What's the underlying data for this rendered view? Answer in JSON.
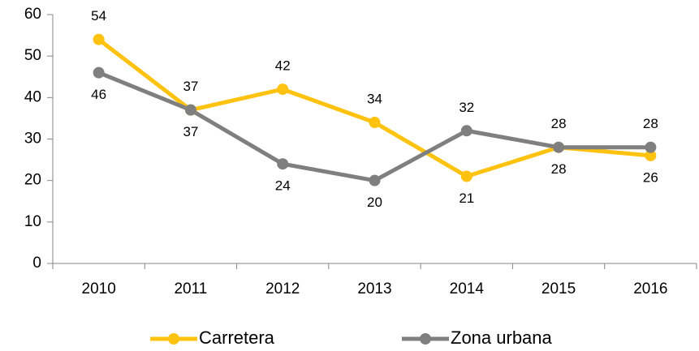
{
  "chart_data": {
    "type": "line",
    "categories": [
      "2010",
      "2011",
      "2012",
      "2013",
      "2014",
      "2015",
      "2016"
    ],
    "series": [
      {
        "name": "Carretera",
        "color": "#FFC20E",
        "values": [
          54,
          37,
          42,
          34,
          21,
          28,
          26
        ]
      },
      {
        "name": "Zona urbana",
        "color": "#7F7F7F",
        "values": [
          46,
          37,
          24,
          20,
          32,
          28,
          28
        ]
      }
    ],
    "ylim": [
      0,
      60
    ],
    "yticks": [
      0,
      10,
      20,
      30,
      40,
      50,
      60
    ],
    "grid": false,
    "legend": "bottom"
  }
}
